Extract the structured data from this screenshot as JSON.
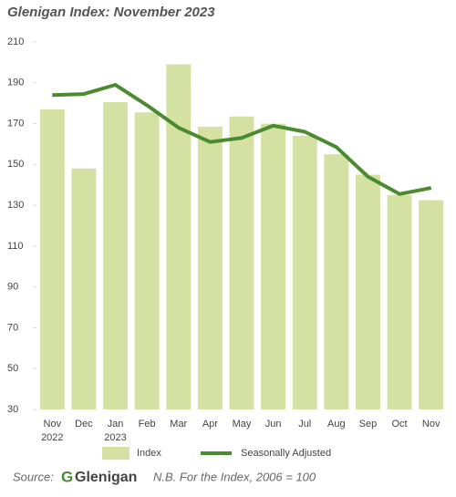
{
  "chart_data": {
    "type": "bar_line",
    "title": "Glenigan Index: November 2023",
    "categories": [
      "Nov 2022",
      "Dec",
      "Jan 2023",
      "Feb",
      "Mar",
      "Apr",
      "May",
      "Jun",
      "Jul",
      "Aug",
      "Sep",
      "Oct",
      "Nov"
    ],
    "series": [
      {
        "name": "Index",
        "kind": "bar",
        "color": "#d4e1a3",
        "values": [
          177,
          148,
          180.5,
          175.5,
          199,
          168.5,
          173.5,
          170,
          164,
          155,
          145,
          135,
          132.5
        ]
      },
      {
        "name": "Seasonally Adjusted",
        "kind": "line",
        "color": "#4a8b2f",
        "values": [
          184,
          184.5,
          189,
          179,
          168,
          161,
          163,
          169,
          166,
          158.5,
          144,
          135.5,
          138.5
        ]
      }
    ],
    "ylim": [
      30,
      210
    ],
    "yticks": [
      30,
      50,
      70,
      90,
      110,
      130,
      150,
      170,
      190,
      210
    ],
    "source": {
      "label": "Source:",
      "brand_mark": "G",
      "brand": "Glenigan",
      "note": "N.B. For the Index, 2006 = 100"
    }
  }
}
